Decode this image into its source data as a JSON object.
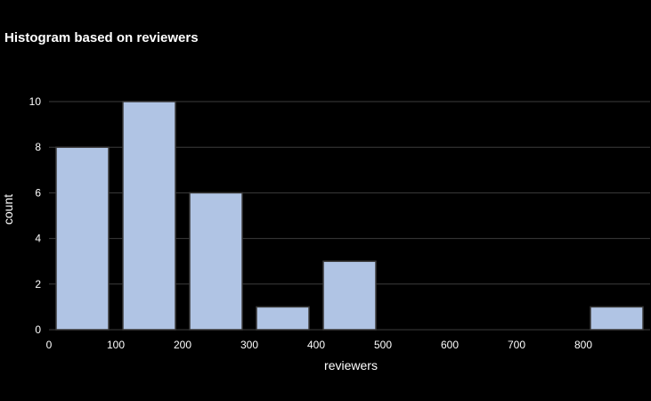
{
  "chart_data": {
    "type": "bar",
    "title": "Histogram based on reviewers",
    "xlabel": "reviewers",
    "ylabel": "count",
    "bins": [
      {
        "start": 0,
        "end": 100,
        "count": 8
      },
      {
        "start": 100,
        "end": 200,
        "count": 10
      },
      {
        "start": 200,
        "end": 300,
        "count": 6
      },
      {
        "start": 300,
        "end": 400,
        "count": 1
      },
      {
        "start": 400,
        "end": 500,
        "count": 3
      },
      {
        "start": 500,
        "end": 600,
        "count": 0
      },
      {
        "start": 600,
        "end": 700,
        "count": 0
      },
      {
        "start": 700,
        "end": 800,
        "count": 0
      },
      {
        "start": 800,
        "end": 900,
        "count": 1
      }
    ],
    "xlim": [
      0,
      900
    ],
    "ylim": [
      0,
      10
    ],
    "xticks": [
      0,
      100,
      200,
      300,
      400,
      500,
      600,
      700,
      800
    ],
    "yticks": [
      0,
      2,
      4,
      6,
      8,
      10
    ],
    "grid": true,
    "colors": {
      "background": "#000000",
      "bar_fill": "#b0c4e4",
      "bar_stroke": "#3a3a3a",
      "grid": "#3c3c3c",
      "text": "#ffffff"
    }
  }
}
